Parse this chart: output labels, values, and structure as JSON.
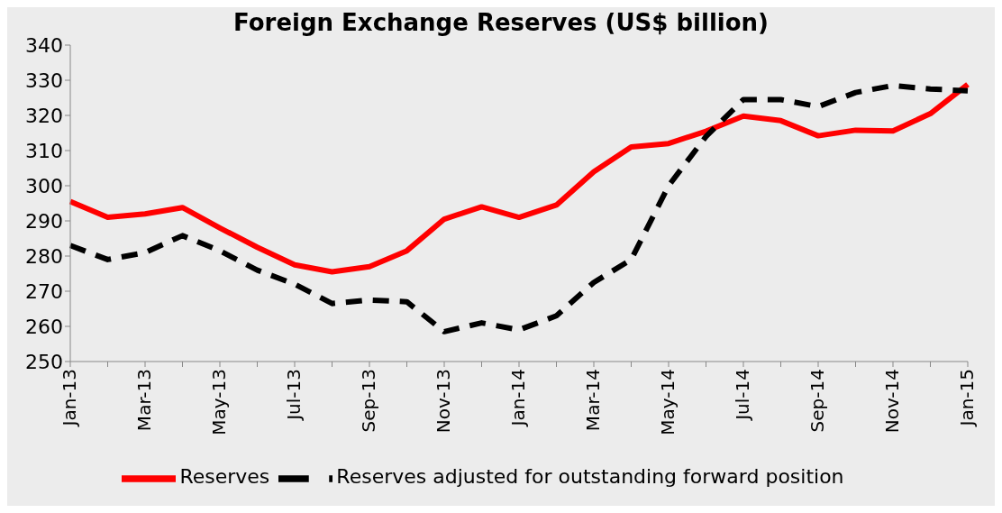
{
  "chart_data": {
    "type": "line",
    "title": "Foreign Exchange Reserves (US$ billion)",
    "categories": [
      "Jan-13",
      null,
      "Mar-13",
      null,
      "May-13",
      null,
      "Jul-13",
      null,
      "Sep-13",
      null,
      "Nov-13",
      null,
      "Jan-14",
      null,
      "Mar-14",
      null,
      "May-14",
      null,
      "Jul-14",
      null,
      "Sep-14",
      null,
      "Nov-14",
      null,
      "Jan-15"
    ],
    "series": [
      {
        "name": "Reserves",
        "color": "#ff0000",
        "line_style": "solid",
        "values": [
          295.5,
          291,
          292,
          293.8,
          288,
          282.5,
          277.5,
          275.5,
          277,
          281.5,
          290.5,
          294,
          291,
          294.5,
          304,
          311,
          312,
          315.5,
          319.8,
          318.5,
          314.2,
          315.8,
          315.6,
          320.5,
          328.8
        ]
      },
      {
        "name": "Reserves adjusted for outstanding forward position",
        "color": "#000000",
        "line_style": "dashed",
        "values": [
          283,
          279,
          281,
          285.8,
          281.5,
          276,
          272,
          266.5,
          267.5,
          267,
          258.5,
          261,
          259,
          263,
          272.5,
          279,
          300,
          314,
          324.5,
          324.5,
          322.5,
          326.5,
          328.5,
          327.5,
          327
        ]
      }
    ],
    "ylim": [
      250,
      340
    ],
    "yticks": [
      250,
      260,
      270,
      280,
      290,
      300,
      310,
      320,
      330,
      340
    ],
    "grid": false,
    "legend": "bottom",
    "marker": "none"
  }
}
